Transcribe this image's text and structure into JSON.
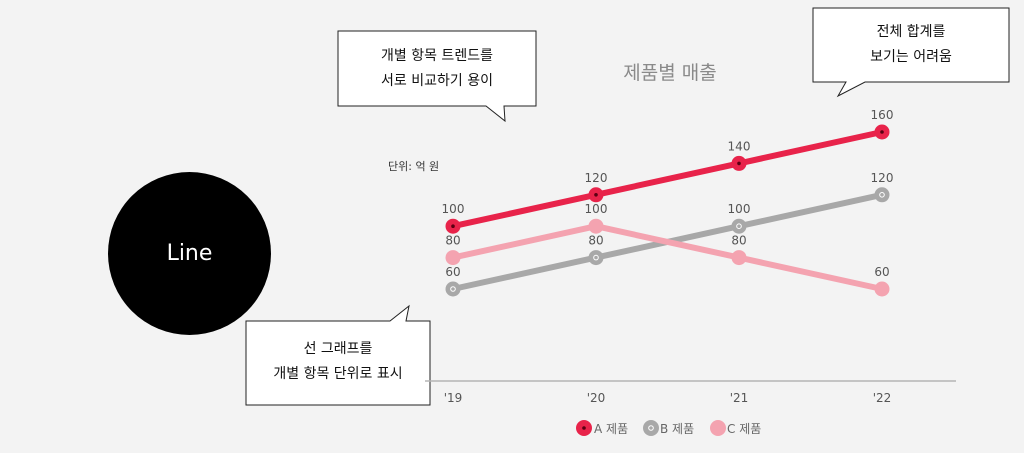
{
  "badge": {
    "label": "Line"
  },
  "callouts": {
    "top_left": {
      "line1": "개별 항목 트렌드를",
      "line2": "서로 비교하기 용이"
    },
    "top_right": {
      "line1": "전체 합계를",
      "line2": "보기는 어려움"
    },
    "bottom_left": {
      "line1": "선 그래프를",
      "line2": "개별 항목 단위로 표시"
    }
  },
  "chart_data": {
    "type": "line",
    "title": "제품별 매출",
    "unit_label": "단위: 억 원",
    "categories": [
      "'19",
      "'20",
      "'21",
      "'22"
    ],
    "series": [
      {
        "name": "A 제품",
        "color": "#e8234a",
        "values": [
          100,
          120,
          140,
          160
        ]
      },
      {
        "name": "B 제품",
        "color": "#a8a8a8",
        "values": [
          60,
          80,
          100,
          120
        ]
      },
      {
        "name": "C 제품",
        "color": "#f4a3b0",
        "values": [
          80,
          100,
          80,
          60
        ]
      }
    ],
    "ylim": [
      60,
      160
    ],
    "grid": false,
    "legend_position": "bottom"
  }
}
